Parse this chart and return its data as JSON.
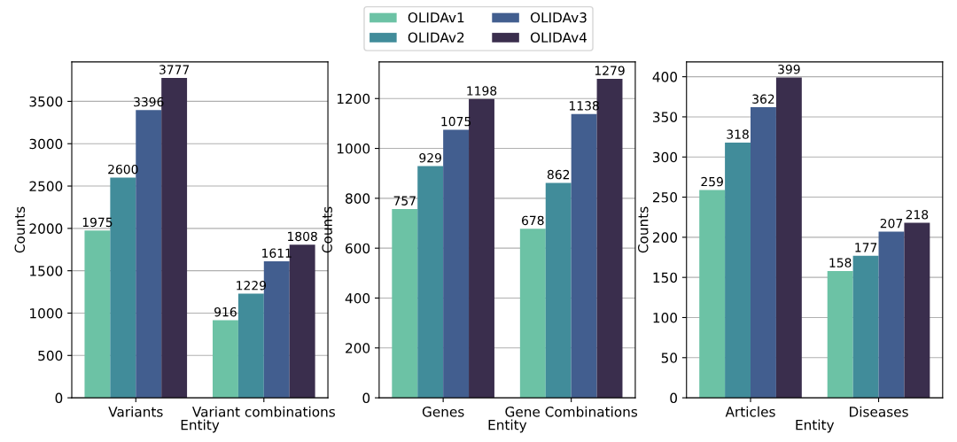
{
  "chart_data": [
    {
      "type": "bar",
      "categories": [
        "Variants",
        "Variant combinations"
      ],
      "xlabel": "Entity",
      "ylabel": "Counts",
      "ylim": [
        0,
        3966
      ],
      "yticks": [
        0,
        500,
        1000,
        1500,
        2000,
        2500,
        3000,
        3500
      ],
      "grid": "y",
      "data_labels": true,
      "legend": "top",
      "series": [
        {
          "name": "OLIDAv1",
          "color": "#6cc2a5",
          "values": [
            1975,
            916
          ]
        },
        {
          "name": "OLIDAv2",
          "color": "#418c9a",
          "values": [
            2600,
            1229
          ]
        },
        {
          "name": "OLIDAv3",
          "color": "#425e8f",
          "values": [
            3396,
            1611
          ]
        },
        {
          "name": "OLIDAv4",
          "color": "#3a2e4d",
          "values": [
            3777,
            1808
          ]
        }
      ]
    },
    {
      "type": "bar",
      "categories": [
        "Genes",
        "Gene Combinations"
      ],
      "xlabel": "Entity",
      "ylabel": "Counts",
      "ylim": [
        0,
        1347
      ],
      "yticks": [
        0,
        200,
        400,
        600,
        800,
        1000,
        1200
      ],
      "grid": "y",
      "data_labels": true,
      "series": [
        {
          "color": "#6cc2a5",
          "values": [
            757,
            678
          ]
        },
        {
          "color": "#418c9a",
          "values": [
            929,
            862
          ]
        },
        {
          "color": "#425e8f",
          "values": [
            1075,
            1138
          ]
        },
        {
          "color": "#3a2e4d",
          "values": [
            1198,
            1279
          ]
        }
      ]
    },
    {
      "type": "bar",
      "categories": [
        "Articles",
        "Diseases"
      ],
      "xlabel": "Entity",
      "ylabel": "Counts",
      "ylim": [
        0,
        418.5
      ],
      "yticks": [
        0,
        50,
        100,
        150,
        200,
        250,
        300,
        350,
        400
      ],
      "grid": "y",
      "data_labels": true,
      "series": [
        {
          "color": "#6cc2a5",
          "values": [
            259,
            158
          ]
        },
        {
          "color": "#418c9a",
          "values": [
            318,
            177
          ]
        },
        {
          "color": "#425e8f",
          "values": [
            362,
            207
          ]
        },
        {
          "color": "#3a2e4d",
          "values": [
            399,
            218
          ]
        }
      ]
    }
  ]
}
